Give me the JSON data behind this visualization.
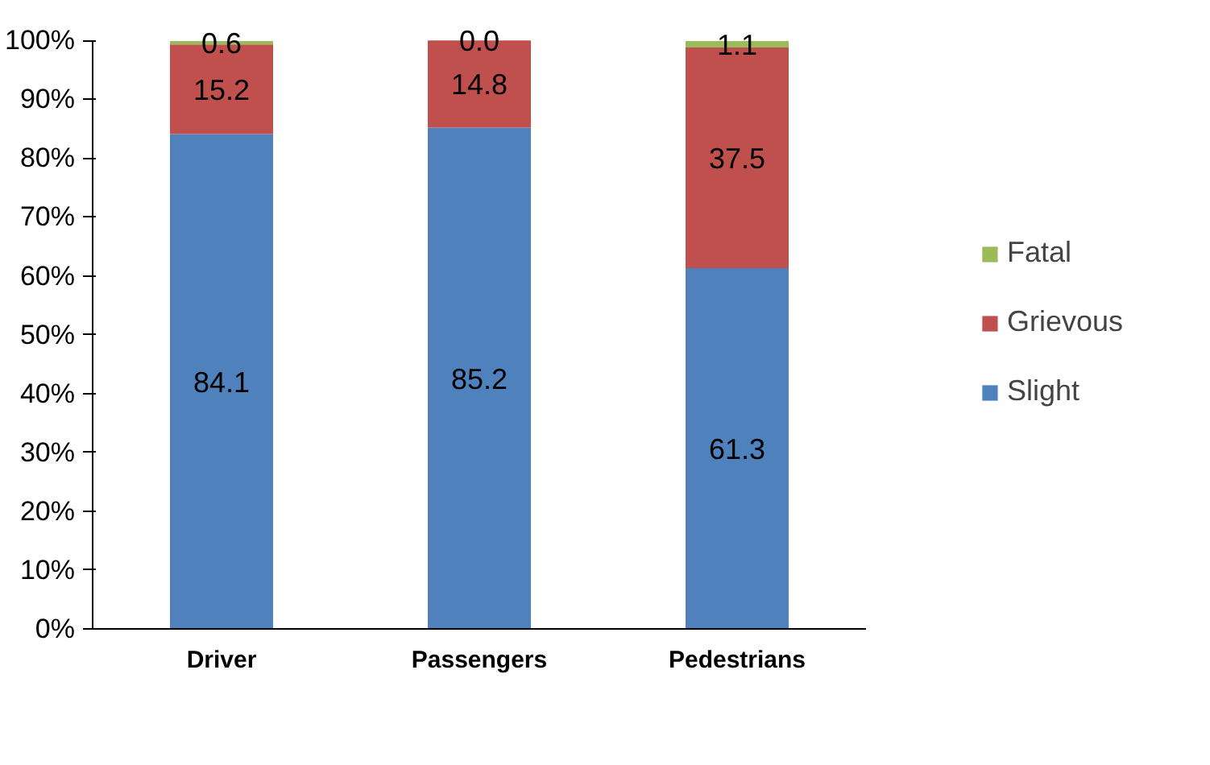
{
  "chart_data": {
    "type": "bar",
    "stacked": true,
    "categories": [
      "Driver",
      "Passengers",
      "Pedestrians"
    ],
    "series": [
      {
        "name": "Slight",
        "color": "#4f81bd",
        "values": [
          84.1,
          85.2,
          61.3
        ]
      },
      {
        "name": "Grievous",
        "color": "#c0504d",
        "values": [
          15.2,
          14.8,
          37.5
        ]
      },
      {
        "name": "Fatal",
        "color": "#9bbb59",
        "values": [
          0.6,
          0.0,
          1.1
        ],
        "value_labels": [
          "0.6",
          "0.0",
          "1.1"
        ]
      }
    ],
    "ylim": [
      0,
      100
    ],
    "yticks": [
      {
        "value": 0,
        "label": "0%"
      },
      {
        "value": 10,
        "label": "10%"
      },
      {
        "value": 20,
        "label": "20%"
      },
      {
        "value": 30,
        "label": "30%"
      },
      {
        "value": 40,
        "label": "40%"
      },
      {
        "value": 50,
        "label": "50%"
      },
      {
        "value": 60,
        "label": "60%"
      },
      {
        "value": 70,
        "label": "70%"
      },
      {
        "value": 80,
        "label": "80%"
      },
      {
        "value": 90,
        "label": "90%"
      },
      {
        "value": 100,
        "label": "100%"
      }
    ],
    "data_labels": true,
    "grid": false,
    "legend": "right"
  }
}
